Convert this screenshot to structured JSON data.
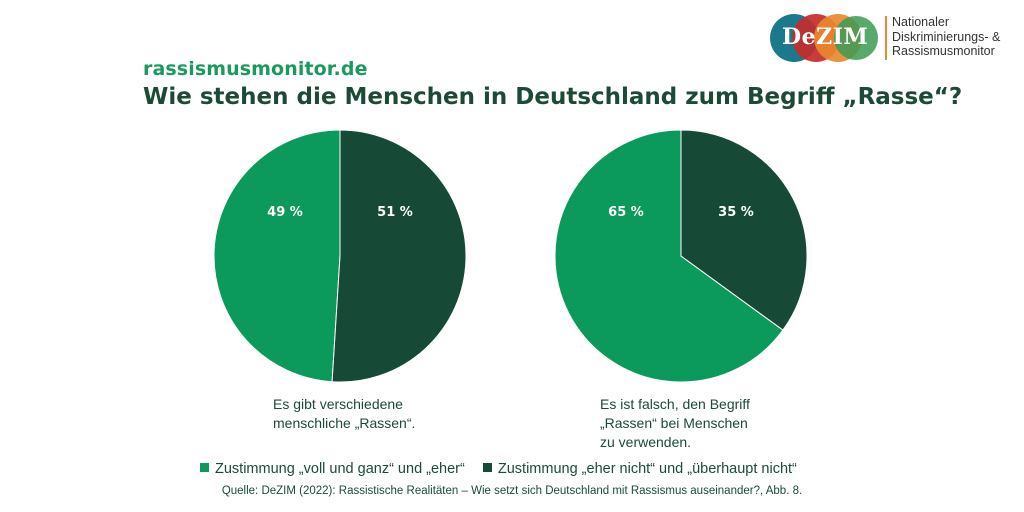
{
  "header": {
    "site": "rassismusmonitor.de",
    "title": "Wie stehen die Menschen in Deutschland zum Begriff „Rasse“?"
  },
  "logo": {
    "wordmark": "DeZIM",
    "line1": "Nationaler",
    "line2": "Diskriminierungs- &",
    "line3": "Rassismusmonitor"
  },
  "colors": {
    "agree": "#0b9a5c",
    "disagree": "#164a37",
    "text": "#1d4a37",
    "site": "#1a9a5e"
  },
  "chart_data": [
    {
      "type": "pie",
      "caption": "Es gibt verschiedene menschliche „Rassen“.",
      "caption_lines": [
        "Es gibt verschiedene",
        "menschliche „Rassen“."
      ],
      "slices": [
        {
          "name": "Zustimmung „voll und ganz“ und „eher“",
          "value": 49,
          "label": "49 %"
        },
        {
          "name": "Zustimmung „eher nicht“ und „überhaupt nicht“",
          "value": 51,
          "label": "51 %"
        }
      ]
    },
    {
      "type": "pie",
      "caption": "Es ist falsch, den Begriff „Rassen“ bei Menschen zu verwenden.",
      "caption_lines": [
        "Es ist falsch, den Begriff",
        "„Rassen“ bei Menschen",
        "zu verwenden."
      ],
      "slices": [
        {
          "name": "Zustimmung „voll und ganz“ und „eher“",
          "value": 65,
          "label": "65 %"
        },
        {
          "name": "Zustimmung „eher nicht“ und „überhaupt nicht“",
          "value": 35,
          "label": "35 %"
        }
      ]
    }
  ],
  "legend": [
    {
      "label": "Zustimmung „voll und ganz“ und „eher“",
      "color": "#0b9a5c"
    },
    {
      "label": "Zustimmung „eher nicht“ und „überhaupt nicht“",
      "color": "#164a37"
    }
  ],
  "source": "Quelle: DeZIM (2022): Rassistische Realitäten – Wie setzt sich Deutschland mit Rassismus auseinander?, Abb. 8."
}
